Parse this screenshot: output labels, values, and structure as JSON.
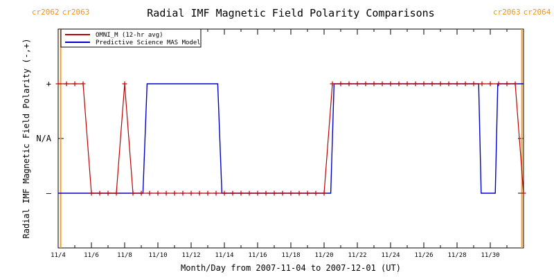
{
  "chart_data": {
    "type": "line",
    "title": "Radial IMF Magnetic Field Polarity Comparisons",
    "xlabel": "Month/Day from 2007-11-04 to 2007-12-01 (UT)",
    "ylabel": "Radial IMF Magnetic Field Polarity (-,+)",
    "x_unit": "day index since 2007-11-04 00:00 UT",
    "xlim": [
      0,
      28
    ],
    "x_ticks": [
      {
        "x": 0,
        "label": "11/4"
      },
      {
        "x": 2,
        "label": "11/6"
      },
      {
        "x": 4,
        "label": "11/8"
      },
      {
        "x": 6,
        "label": "11/10"
      },
      {
        "x": 8,
        "label": "11/12"
      },
      {
        "x": 10,
        "label": "11/14"
      },
      {
        "x": 12,
        "label": "11/16"
      },
      {
        "x": 14,
        "label": "11/18"
      },
      {
        "x": 16,
        "label": "11/20"
      },
      {
        "x": 18,
        "label": "11/22"
      },
      {
        "x": 20,
        "label": "11/24"
      },
      {
        "x": 22,
        "label": "11/26"
      },
      {
        "x": 24,
        "label": "11/28"
      },
      {
        "x": 26,
        "label": "11/30"
      }
    ],
    "ylim": [
      -2,
      2
    ],
    "y_ticks": [
      {
        "y": 1,
        "label": "+"
      },
      {
        "y": 0,
        "label": "N/A"
      },
      {
        "y": -1,
        "label": "–"
      }
    ],
    "grid": false,
    "legend_position": "top-left",
    "carrington_markers": [
      {
        "x": 0.15,
        "left_label": "cr2062",
        "right_label": "cr2063",
        "color": "#f0a030"
      },
      {
        "x": 27.9,
        "left_label": "cr2063",
        "right_label": "cr2064",
        "color": "#f0a030"
      }
    ],
    "series": [
      {
        "name": "OMNI_M (12-hr avg)",
        "color": "#bb0000",
        "marker": "plus",
        "points": [
          [
            0.0,
            1
          ],
          [
            0.5,
            1
          ],
          [
            1.0,
            1
          ],
          [
            1.5,
            1
          ],
          [
            2.0,
            -1
          ],
          [
            2.5,
            -1
          ],
          [
            3.0,
            -1
          ],
          [
            3.5,
            -1
          ],
          [
            4.0,
            1
          ],
          [
            4.5,
            -1
          ],
          [
            5.0,
            -1
          ],
          [
            5.5,
            -1
          ],
          [
            6.0,
            -1
          ],
          [
            6.5,
            -1
          ],
          [
            7.0,
            -1
          ],
          [
            7.5,
            -1
          ],
          [
            8.0,
            -1
          ],
          [
            8.5,
            -1
          ],
          [
            9.0,
            -1
          ],
          [
            9.5,
            -1
          ],
          [
            10.0,
            -1
          ],
          [
            10.5,
            -1
          ],
          [
            11.0,
            -1
          ],
          [
            11.5,
            -1
          ],
          [
            12.0,
            -1
          ],
          [
            12.5,
            -1
          ],
          [
            13.0,
            -1
          ],
          [
            13.5,
            -1
          ],
          [
            14.0,
            -1
          ],
          [
            14.5,
            -1
          ],
          [
            15.0,
            -1
          ],
          [
            15.5,
            -1
          ],
          [
            16.0,
            -1
          ],
          [
            16.5,
            1
          ],
          [
            17.0,
            1
          ],
          [
            17.5,
            1
          ],
          [
            18.0,
            1
          ],
          [
            18.5,
            1
          ],
          [
            19.0,
            1
          ],
          [
            19.5,
            1
          ],
          [
            20.0,
            1
          ],
          [
            20.5,
            1
          ],
          [
            21.0,
            1
          ],
          [
            21.5,
            1
          ],
          [
            22.0,
            1
          ],
          [
            22.5,
            1
          ],
          [
            23.0,
            1
          ],
          [
            23.5,
            1
          ],
          [
            24.0,
            1
          ],
          [
            24.5,
            1
          ],
          [
            25.0,
            1
          ],
          [
            25.5,
            1
          ],
          [
            26.0,
            1
          ],
          [
            26.5,
            1
          ],
          [
            27.0,
            1
          ],
          [
            27.5,
            1
          ],
          [
            28.0,
            -1
          ]
        ]
      },
      {
        "name": "Predictive Science MAS Model",
        "color": "#0000cc",
        "marker": "none",
        "points": [
          [
            0.0,
            -1
          ],
          [
            5.1,
            -1
          ],
          [
            5.35,
            1
          ],
          [
            9.6,
            1
          ],
          [
            9.85,
            -1
          ],
          [
            16.4,
            -1
          ],
          [
            16.6,
            1
          ],
          [
            25.3,
            1
          ],
          [
            25.45,
            -1
          ],
          [
            26.3,
            -1
          ],
          [
            26.45,
            1
          ],
          [
            28.0,
            1
          ]
        ]
      }
    ]
  }
}
